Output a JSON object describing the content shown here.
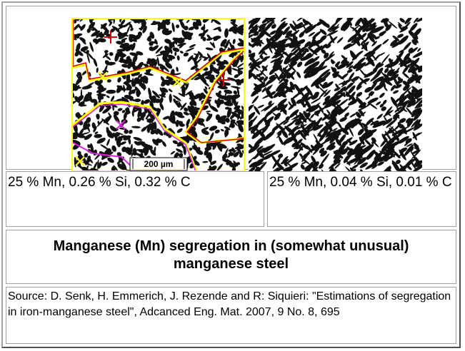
{
  "figure": {
    "scale_bar": "200 µm"
  },
  "captions": [
    "25 % Mn, 0.26 % Si, 0.32 % C",
    "25 % Mn, 0.04 % Si, 0.01 % C"
  ],
  "title": "Manganese (Mn) segregation in (somewhat unusual) manganese steel",
  "source": "Source: D. Senk, H. Emmerich, J. Rezende and R: Siquieri: \"Estimations of segregation in iron-manganese steel\", Adcanced Eng. Mat. 2007, 9 No. 8, 695"
}
